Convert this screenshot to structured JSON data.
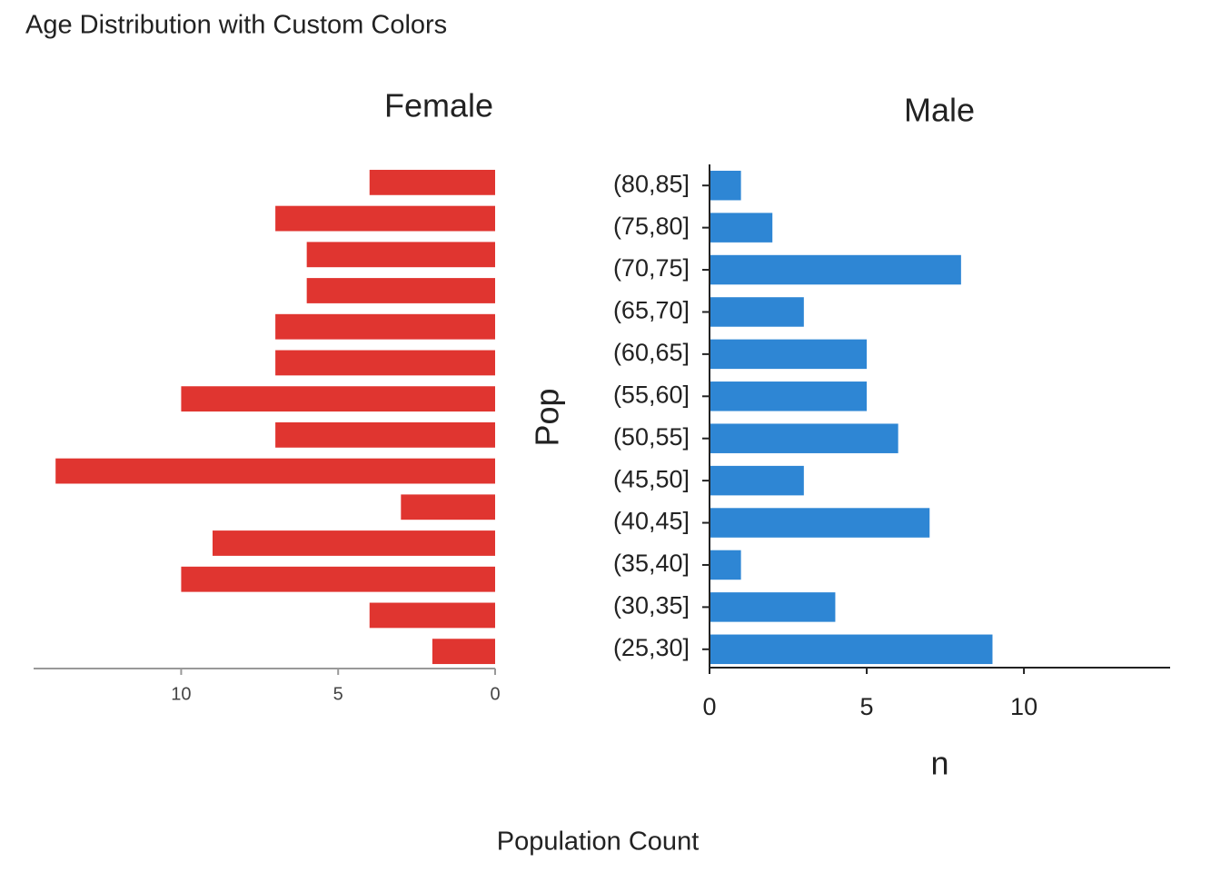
{
  "title": "Age Distribution with Custom Colors",
  "x_label": "Population Count",
  "chart_data": [
    {
      "type": "bar",
      "orientation": "horizontal",
      "title": "Female",
      "categories": [
        null,
        null,
        null,
        null,
        null,
        null,
        null,
        null,
        null,
        null,
        null,
        null,
        null,
        null
      ],
      "values": [
        2,
        4,
        10,
        9,
        3,
        14,
        7,
        10,
        7,
        7,
        6,
        6,
        7,
        4
      ],
      "color": "#e03530",
      "xlim": [
        0,
        14.7
      ],
      "xticks": [
        0,
        5,
        10
      ],
      "reversed": true
    },
    {
      "type": "bar",
      "orientation": "horizontal",
      "title": "Male",
      "x_label": "n",
      "y_label": "Pop",
      "categories": [
        "(25,30]",
        "(30,35]",
        "(35,40]",
        "(40,45]",
        "(45,50]",
        "(50,55]",
        "(55,60]",
        "(60,65]",
        "(65,70]",
        "(70,75]",
        "(75,80]",
        "(80,85]"
      ],
      "values": [
        9,
        4,
        1,
        7,
        3,
        6,
        5,
        5,
        3,
        8,
        2,
        1
      ],
      "color": "#2e86d4",
      "xlim": [
        0,
        14.65
      ],
      "xticks": [
        0,
        5,
        10
      ],
      "reversed": false
    }
  ]
}
